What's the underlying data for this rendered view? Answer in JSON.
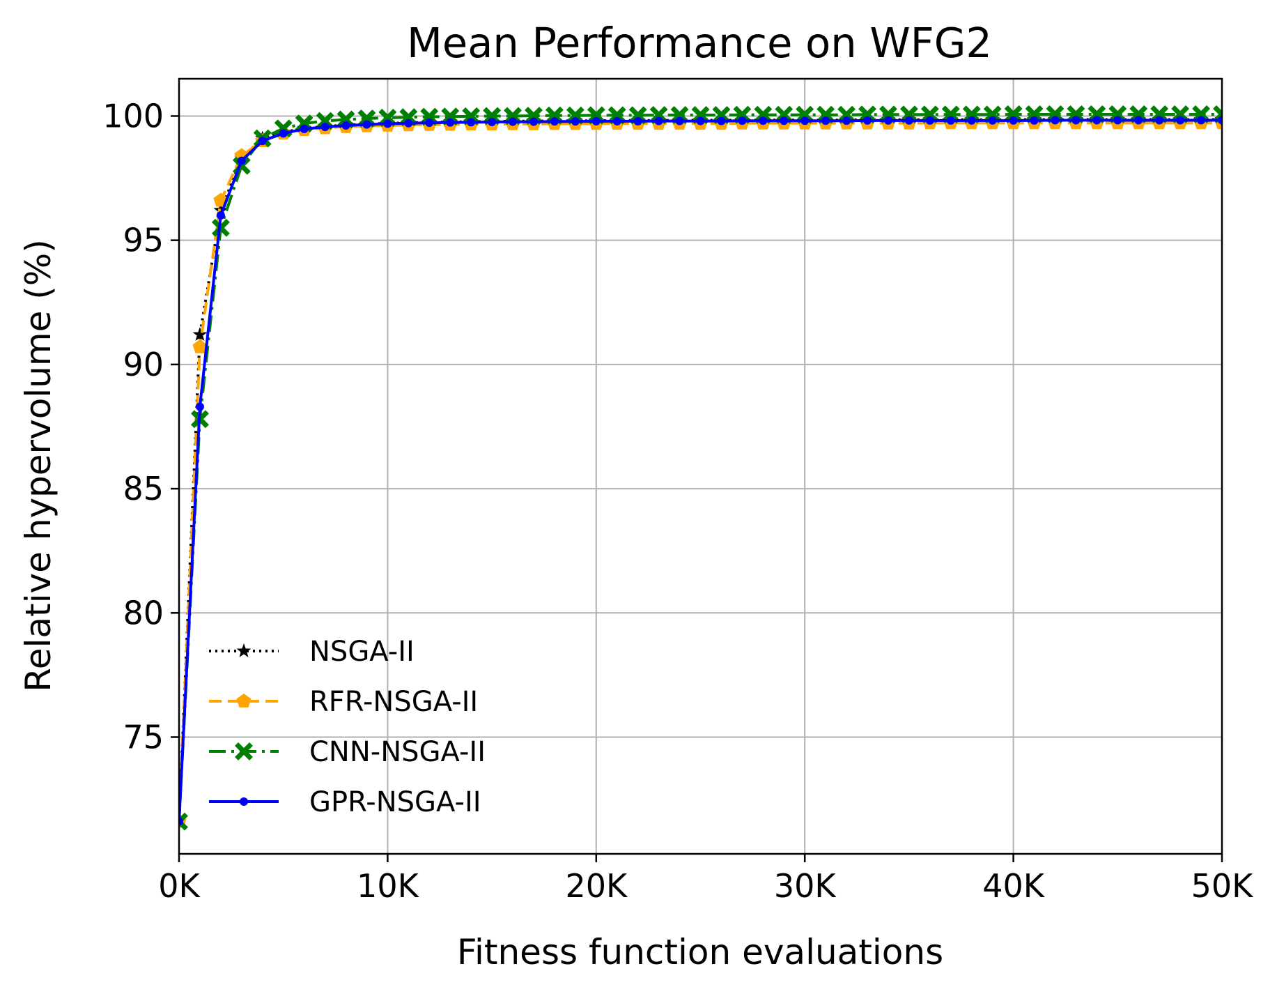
{
  "chart_data": {
    "type": "line",
    "title": "Mean Performance on WFG2",
    "xlabel": "Fitness function evaluations",
    "ylabel": "Relative hypervolume (%)",
    "xlim": [
      0,
      50000
    ],
    "ylim": [
      70.3,
      101.5
    ],
    "grid": true,
    "legend_position": "lower-left",
    "xticks": [
      {
        "value": 0,
        "label": "0K"
      },
      {
        "value": 10000,
        "label": "10K"
      },
      {
        "value": 20000,
        "label": "20K"
      },
      {
        "value": 30000,
        "label": "30K"
      },
      {
        "value": 40000,
        "label": "40K"
      },
      {
        "value": 50000,
        "label": "50K"
      }
    ],
    "yticks": [
      {
        "value": 75,
        "label": "75"
      },
      {
        "value": 80,
        "label": "80"
      },
      {
        "value": 85,
        "label": "85"
      },
      {
        "value": 90,
        "label": "90"
      },
      {
        "value": 95,
        "label": "95"
      },
      {
        "value": 100,
        "label": "100"
      }
    ],
    "x_step": 1000,
    "series": [
      {
        "name": "NSGA-II",
        "color": "#000000",
        "linestyle": "dotted",
        "marker": "star",
        "values": [
          71.6,
          91.2,
          96.2,
          98.3,
          99.1,
          99.35,
          99.5,
          99.58,
          99.64,
          99.68,
          99.71,
          99.73,
          99.75,
          99.76,
          99.77,
          99.78,
          99.79,
          99.8,
          99.8,
          99.81,
          99.81,
          99.82,
          99.82,
          99.82,
          99.83,
          99.83,
          99.83,
          99.83,
          99.84,
          99.84,
          99.84,
          99.84,
          99.84,
          99.85,
          99.85,
          99.85,
          99.85,
          99.85,
          99.85,
          99.85,
          99.86,
          99.86,
          99.86,
          99.86,
          99.86,
          99.86,
          99.86,
          99.86,
          99.86,
          99.86,
          99.86
        ]
      },
      {
        "name": "RFR-NSGA-II",
        "color": "#ffa500",
        "linestyle": "dashed",
        "marker": "pentagon",
        "values": [
          71.6,
          90.7,
          96.6,
          98.4,
          99.0,
          99.3,
          99.45,
          99.52,
          99.57,
          99.6,
          99.62,
          99.64,
          99.65,
          99.66,
          99.67,
          99.67,
          99.68,
          99.68,
          99.69,
          99.69,
          99.69,
          99.7,
          99.7,
          99.7,
          99.7,
          99.7,
          99.7,
          99.71,
          99.71,
          99.71,
          99.71,
          99.71,
          99.71,
          99.71,
          99.71,
          99.71,
          99.72,
          99.72,
          99.72,
          99.72,
          99.72,
          99.72,
          99.72,
          99.72,
          99.72,
          99.72,
          99.72,
          99.72,
          99.72,
          99.72,
          99.72
        ]
      },
      {
        "name": "CNN-NSGA-II",
        "color": "#008000",
        "linestyle": "dashdot",
        "marker": "x-filled",
        "values": [
          71.6,
          87.8,
          95.5,
          98.0,
          99.1,
          99.5,
          99.7,
          99.8,
          99.86,
          99.9,
          99.93,
          99.95,
          99.97,
          99.98,
          99.99,
          100.0,
          100.0,
          100.01,
          100.02,
          100.02,
          100.03,
          100.03,
          100.03,
          100.04,
          100.04,
          100.04,
          100.04,
          100.05,
          100.05,
          100.05,
          100.05,
          100.05,
          100.05,
          100.06,
          100.06,
          100.06,
          100.06,
          100.06,
          100.06,
          100.06,
          100.07,
          100.07,
          100.07,
          100.07,
          100.07,
          100.07,
          100.07,
          100.07,
          100.07,
          100.07,
          100.07
        ]
      },
      {
        "name": "GPR-NSGA-II",
        "color": "#0000ff",
        "linestyle": "solid",
        "marker": "dot",
        "values": [
          71.6,
          88.3,
          96.0,
          98.2,
          99.0,
          99.3,
          99.48,
          99.56,
          99.62,
          99.66,
          99.69,
          99.71,
          99.73,
          99.74,
          99.75,
          99.76,
          99.77,
          99.77,
          99.78,
          99.78,
          99.79,
          99.79,
          99.79,
          99.8,
          99.8,
          99.8,
          99.8,
          99.81,
          99.81,
          99.81,
          99.81,
          99.81,
          99.81,
          99.82,
          99.82,
          99.82,
          99.82,
          99.82,
          99.82,
          99.82,
          99.82,
          99.82,
          99.83,
          99.83,
          99.83,
          99.83,
          99.83,
          99.83,
          99.83,
          99.83,
          99.83
        ]
      }
    ]
  }
}
